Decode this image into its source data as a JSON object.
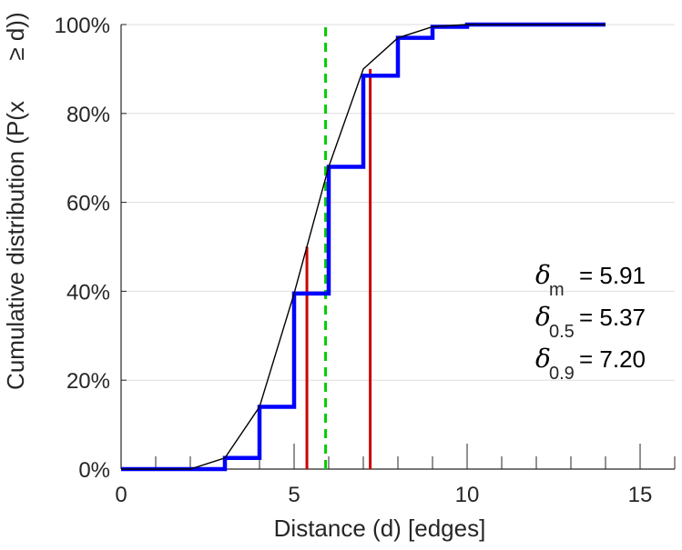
{
  "chart_data": {
    "type": "line",
    "xlabel": "Distance (d) [edges]",
    "ylabel": "Cumulative distribution (P(x",
    "ylabel_rotated_tail": "≥ d))",
    "xlim": [
      0,
      16
    ],
    "ylim": [
      0,
      100
    ],
    "x_ticks": [
      0,
      5,
      10,
      15
    ],
    "x_tick_labels": [
      "0",
      "5",
      "10",
      "15"
    ],
    "y_ticks": [
      0,
      20,
      40,
      60,
      80,
      100
    ],
    "y_tick_labels": [
      "0%",
      "20%",
      "40%",
      "60%",
      "80%",
      "100%"
    ],
    "grid": "horizontal",
    "series": [
      {
        "style": "step",
        "color": "#0000ff",
        "x": [
          0,
          1,
          2,
          3,
          4,
          5,
          6,
          7,
          8,
          9,
          10,
          11,
          12,
          13,
          14
        ],
        "values": [
          0,
          0,
          0,
          2.5,
          14,
          39.5,
          68,
          88.5,
          97,
          99.5,
          100,
          100,
          100,
          100,
          100
        ]
      },
      {
        "style": "line",
        "color": "#000000",
        "x": [
          0,
          1,
          2,
          3,
          4,
          5,
          6,
          7,
          8,
          9,
          10,
          11,
          12,
          13,
          14
        ],
        "values": [
          0,
          0,
          0,
          2.5,
          14,
          39.5,
          68,
          90,
          97,
          99.5,
          100,
          100,
          100,
          100,
          100
        ]
      }
    ],
    "vertical_markers": [
      {
        "x": 5.91,
        "color": "#00cc00",
        "dashed": true,
        "y_top": 100
      },
      {
        "x": 5.37,
        "color": "#cc0000",
        "dashed": false,
        "y_top": 50
      },
      {
        "x": 7.2,
        "color": "#cc0000",
        "dashed": false,
        "y_top": 90
      }
    ],
    "annotations": [
      {
        "symbol": "δ",
        "subscript": "m",
        "value": "= 5.91"
      },
      {
        "symbol": "δ",
        "subscript": "0.5",
        "value": "= 5.37"
      },
      {
        "symbol": "δ",
        "subscript": "0.9",
        "value": "= 7.20"
      }
    ]
  }
}
